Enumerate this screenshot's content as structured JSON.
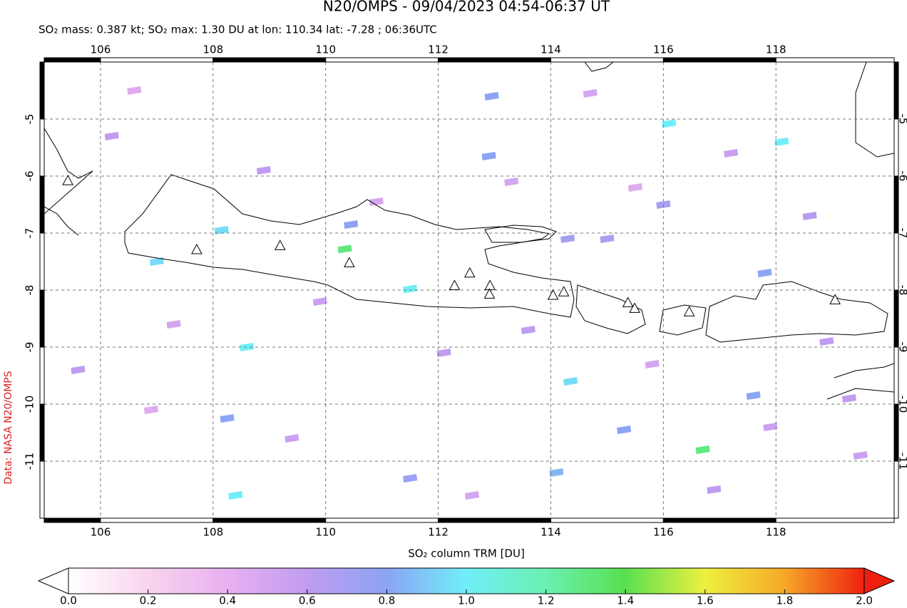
{
  "chart_data": {
    "type": "map",
    "title": "N20/OMPS - 09/04/2023 04:54-06:37 UT",
    "subtitle": "SO₂ mass: 0.387 kt; SO₂ max: 1.30 DU at lon: 110.34 lat: -7.28 ; 06:36UTC",
    "credit": "Data: NASA N20/OMPS",
    "colorbar_label": "SO₂ column TRM [DU]",
    "xlim": [
      105,
      120.1
    ],
    "ylim": [
      -12,
      -4
    ],
    "xticks": [
      106,
      108,
      110,
      112,
      114,
      116,
      118
    ],
    "yticks": [
      -5,
      -6,
      -7,
      -8,
      -9,
      -10,
      -11
    ],
    "clim": [
      0,
      2
    ],
    "cticks": [
      {
        "value": 0,
        "label": "0.0"
      },
      {
        "value": 0.2,
        "label": "0.2"
      },
      {
        "value": 0.4,
        "label": "0.4"
      },
      {
        "value": 0.6,
        "label": "0.6"
      },
      {
        "value": 0.8,
        "label": "0.8"
      },
      {
        "value": 1,
        "label": "1.0"
      },
      {
        "value": 1.2,
        "label": "1.2"
      },
      {
        "value": 1.4,
        "label": "1.4"
      },
      {
        "value": 1.6,
        "label": "1.6"
      },
      {
        "value": 1.8,
        "label": "1.8"
      },
      {
        "value": 2,
        "label": "2.0"
      }
    ],
    "pixels": {
      "lon": [
        110.34,
        116.7,
        111.5,
        114.35,
        116.1,
        118.1,
        110.45,
        112.9,
        112.95,
        115.3,
        117.6,
        114.1,
        108.6,
        108.4,
        107.0,
        108.15,
        108.25,
        114.3,
        115.0,
        116.0,
        117.8,
        111.5,
        106.2,
        107.3,
        109.4,
        113.6,
        115.8,
        117.2,
        118.6,
        119.3,
        105.6,
        106.6,
        109.9,
        112.1,
        113.3,
        114.7,
        116.9,
        119.5,
        110.9,
        108.9,
        106.9,
        118.9,
        112.6,
        115.5,
        117.9
      ],
      "lat": [
        -7.28,
        -10.8,
        -7.98,
        -9.6,
        -5.08,
        -5.4,
        -6.85,
        -5.65,
        -4.6,
        -10.45,
        -9.85,
        -11.2,
        -9.0,
        -11.6,
        -7.5,
        -6.95,
        -10.25,
        -7.1,
        -7.1,
        -6.5,
        -7.7,
        -11.3,
        -5.3,
        -8.6,
        -10.6,
        -8.7,
        -9.3,
        -5.6,
        -6.7,
        -9.9,
        -9.4,
        -4.5,
        -8.2,
        -9.1,
        -6.1,
        -4.55,
        -11.5,
        -10.9,
        -6.45,
        -5.9,
        -10.1,
        -8.9,
        -11.6,
        -6.2,
        -10.4
      ],
      "values": [
        1.3,
        1.3,
        1.0,
        0.95,
        1.0,
        1.0,
        0.8,
        0.8,
        0.8,
        0.8,
        0.8,
        0.85,
        1.0,
        1.0,
        0.95,
        0.95,
        0.8,
        0.7,
        0.7,
        0.7,
        0.8,
        0.75,
        0.6,
        0.5,
        0.55,
        0.6,
        0.5,
        0.55,
        0.65,
        0.6,
        0.6,
        0.45,
        0.55,
        0.6,
        0.5,
        0.5,
        0.6,
        0.55,
        0.5,
        0.6,
        0.45,
        0.6,
        0.5,
        0.45,
        0.55
      ]
    },
    "volcanoes": {
      "lon": [
        105.42,
        107.71,
        109.19,
        110.42,
        112.29,
        112.56,
        112.92,
        112.91,
        114.04,
        114.23,
        115.37,
        115.49,
        116.46,
        119.05
      ],
      "lat": [
        -6.09,
        -7.3,
        -7.23,
        -7.53,
        -7.93,
        -7.71,
        -7.93,
        -8.08,
        -8.1,
        -8.04,
        -8.23,
        -8.33,
        -8.39,
        -8.18
      ]
    }
  }
}
